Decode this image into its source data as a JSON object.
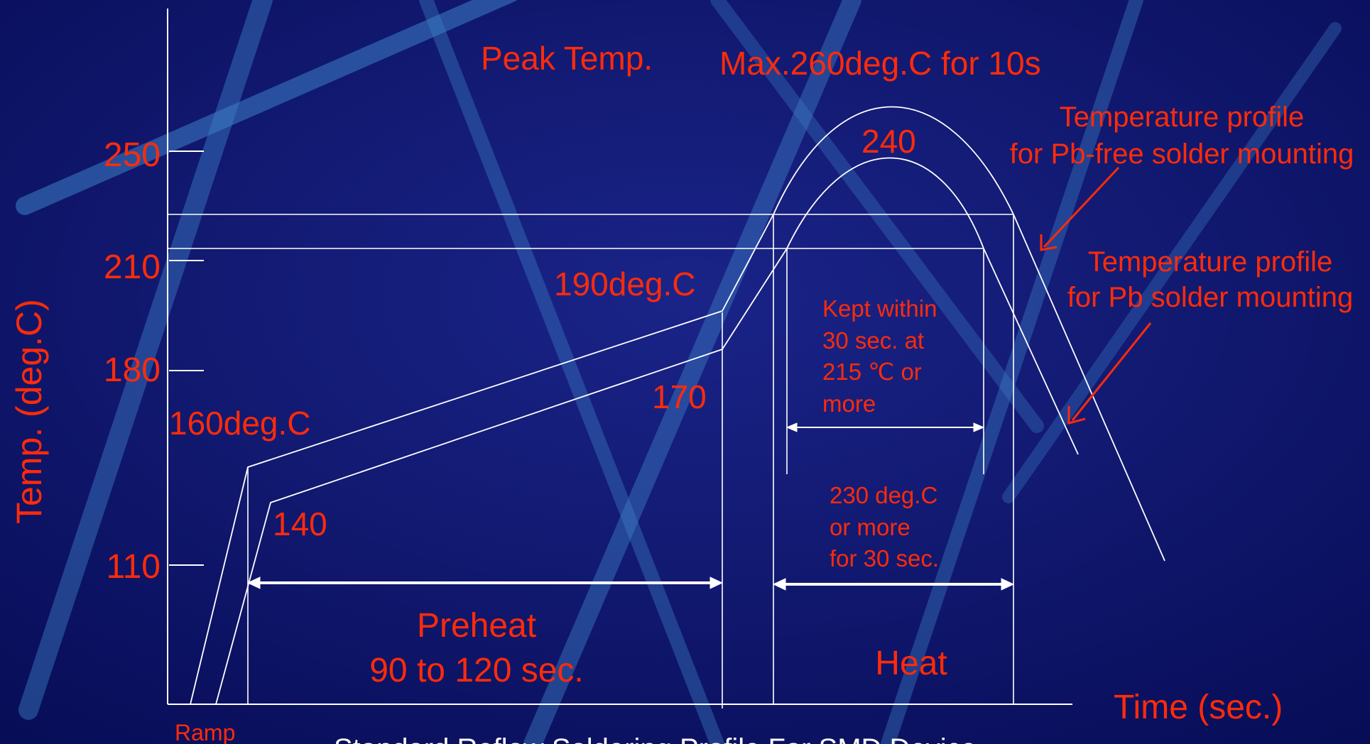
{
  "y_axis": {
    "title": "Temp. (deg.C)",
    "ticks": [
      "250",
      "210",
      "180",
      "110"
    ]
  },
  "x_axis": {
    "title": "Time (sec.)"
  },
  "labels": {
    "peak_temp": "Peak Temp.",
    "max_peak": "Max.260deg.C for 10s",
    "peak_pb": "240",
    "pb_free_profile_1": "Temperature profile",
    "pb_free_profile_2": "for Pb-free solder mounting",
    "pb_profile_1": "Temperature profile",
    "pb_profile_2": "for Pb solder mounting",
    "preheat_end_pbfree": "190deg.C",
    "preheat_end_pb": "170",
    "preheat_start_pbfree": "160deg.C",
    "preheat_start_pb": "140",
    "kept_1": "Kept within",
    "kept_2": "30 sec. at",
    "kept_3": "215 ℃ or",
    "kept_4": "more",
    "above230_1": "230 deg.C",
    "above230_2": "or more",
    "above230_3": "for 30 sec.",
    "preheat_1": "Preheat",
    "preheat_2": "90 to 120 sec.",
    "heat": "Heat",
    "ramp": "Ramp",
    "caption": "Standard Reflow Soldering Profile For SMD Device"
  },
  "colors": {
    "background": "#0b1166",
    "label": "#ff2b0a",
    "line": "#ffffff",
    "streak": "#3d7fc6"
  }
}
